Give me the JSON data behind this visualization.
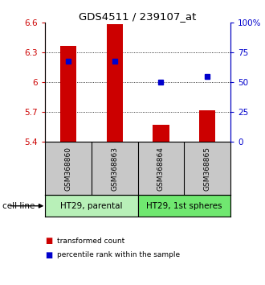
{
  "title": "GDS4511 / 239107_at",
  "samples": [
    "GSM368860",
    "GSM368863",
    "GSM368864",
    "GSM368865"
  ],
  "bar_base": 5.4,
  "bar_tops": [
    6.37,
    6.59,
    5.57,
    5.72
  ],
  "percentile_values": [
    6.215,
    6.215,
    6.0,
    6.055
  ],
  "ylim_left": [
    5.4,
    6.6
  ],
  "ylim_right": [
    0,
    100
  ],
  "yticks_left": [
    5.4,
    5.7,
    6.0,
    6.3,
    6.6
  ],
  "ytick_labels_left": [
    "5.4",
    "5.7",
    "6",
    "6.3",
    "6.6"
  ],
  "yticks_right": [
    0,
    25,
    50,
    75,
    100
  ],
  "ytick_labels_right": [
    "0",
    "25",
    "50",
    "75",
    "100%"
  ],
  "cell_line_groups": [
    {
      "label": "HT29, parental",
      "indices": [
        0,
        1
      ],
      "color": "#b8f0b8"
    },
    {
      "label": "HT29, 1st spheres",
      "indices": [
        2,
        3
      ],
      "color": "#70e870"
    }
  ],
  "bar_color": "#cc0000",
  "dot_color": "#0000cc",
  "bar_width": 0.35,
  "background_color": "#ffffff",
  "plot_bg_color": "#ffffff",
  "label_bg_color": "#c8c8c8",
  "legend_red_label": "transformed count",
  "legend_blue_label": "percentile rank within the sample",
  "cell_line_label": "cell line",
  "dot_size": 4
}
